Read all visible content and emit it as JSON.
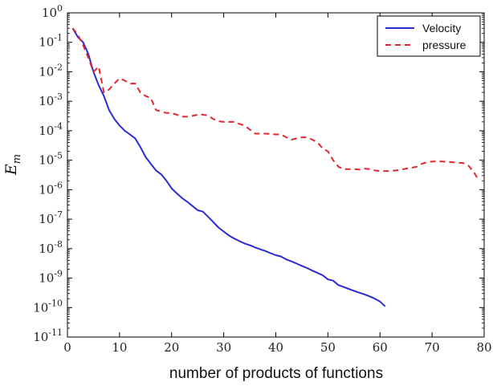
{
  "chart_data": {
    "type": "line",
    "title": "",
    "xlabel": "number of products of functions",
    "ylabel": "E_m",
    "ylabel_main": "E",
    "ylabel_sub": "m",
    "xlim": [
      0,
      80
    ],
    "ylim_exp": [
      -11,
      0
    ],
    "y_scale": "log",
    "grid": false,
    "legend_position": "top-right",
    "x_ticks": [
      0,
      10,
      20,
      30,
      40,
      50,
      60,
      70,
      80
    ],
    "x_tick_labels": [
      "0",
      "10",
      "20",
      "30",
      "40",
      "50",
      "60",
      "70",
      "80"
    ],
    "y_tick_exps": [
      0,
      -1,
      -2,
      -3,
      -4,
      -5,
      -6,
      -7,
      -8,
      -9,
      -10,
      -11
    ],
    "y_tick_base": "10",
    "y_tick_labels": [
      "0",
      "-1",
      "-2",
      "-3",
      "-4",
      "-5",
      "-6",
      "-7",
      "-8",
      "-9",
      "-10",
      "-11"
    ],
    "series": [
      {
        "name": "Velocity",
        "color": "#2b2bd6",
        "style": "solid",
        "x": [
          1,
          2,
          3,
          4,
          5,
          6,
          7,
          8,
          9,
          10,
          11,
          12,
          13,
          14,
          15,
          16,
          17,
          18,
          19,
          20,
          21,
          22,
          23,
          24,
          25,
          26,
          27,
          28,
          29,
          30,
          31,
          32,
          33,
          34,
          35,
          36,
          37,
          38,
          39,
          40,
          41,
          42,
          43,
          44,
          45,
          46,
          47,
          48,
          49,
          50,
          51,
          52,
          53,
          54,
          55,
          56,
          57,
          58,
          59,
          60,
          61
        ],
        "y": [
          0.3,
          0.15,
          0.1,
          0.04,
          0.01,
          0.0035,
          0.0015,
          0.0005,
          0.00025,
          0.00015,
          0.0001,
          7.5e-05,
          5.5e-05,
          2.8e-05,
          1.3e-05,
          7.5e-06,
          4.5e-06,
          3.3e-06,
          2e-06,
          1.1e-06,
          7.5e-07,
          5.2e-07,
          3.9e-07,
          2.8e-07,
          2e-07,
          1.8e-07,
          1.2e-07,
          8e-08,
          5.2e-08,
          3.8e-08,
          2.8e-08,
          2.2e-08,
          1.8e-08,
          1.5e-08,
          1.3e-08,
          1.1e-08,
          9.5e-09,
          8.3e-09,
          7e-09,
          6e-09,
          5.4e-09,
          4.3e-09,
          3.7e-09,
          3.1e-09,
          2.6e-09,
          2.2e-09,
          1.8e-09,
          1.5e-09,
          1.25e-09,
          9e-10,
          8.2e-10,
          5.8e-10,
          5e-10,
          4.3e-10,
          3.7e-10,
          3.2e-10,
          2.8e-10,
          2.4e-10,
          2e-10,
          1.6e-10,
          1.1e-10
        ]
      },
      {
        "name": "pressure",
        "color": "#e0282e",
        "style": "dashed",
        "x": [
          1,
          2,
          3,
          4,
          5,
          6,
          7,
          8,
          9,
          10,
          11,
          12,
          13,
          14,
          15,
          16,
          17,
          18,
          19,
          20,
          21,
          22,
          23,
          24,
          25,
          26,
          27,
          28,
          29,
          30,
          31,
          32,
          33,
          34,
          35,
          36,
          37,
          38,
          39,
          40,
          41,
          42,
          43,
          44,
          45,
          46,
          47,
          48,
          49,
          50,
          51,
          52,
          53,
          54,
          55,
          56,
          57,
          58,
          59,
          60,
          61,
          62,
          63,
          64,
          65,
          66,
          67,
          68,
          69,
          70,
          71,
          72,
          73,
          74,
          75,
          76,
          77,
          78,
          79
        ],
        "y": [
          0.3,
          0.18,
          0.08,
          0.03,
          0.01,
          0.015,
          0.002,
          0.0025,
          0.004,
          0.006,
          0.005,
          0.004,
          0.004,
          0.002,
          0.0015,
          0.0013,
          0.0005,
          0.00045,
          0.0004,
          0.0004,
          0.00035,
          0.0003,
          0.0003,
          0.00032,
          0.00035,
          0.00035,
          0.00033,
          0.00025,
          0.00021,
          0.0002,
          0.0002,
          0.0002,
          0.00017,
          0.00015,
          0.00011,
          8e-05,
          8e-05,
          8e-05,
          7.8e-05,
          7.5e-05,
          7.5e-05,
          6e-05,
          5e-05,
          5.5e-05,
          6e-05,
          6e-05,
          5e-05,
          4e-05,
          2.5e-05,
          2e-05,
          1e-05,
          6e-06,
          5e-06,
          5e-06,
          5e-06,
          4.8e-06,
          5.2e-06,
          5e-06,
          4.5e-06,
          4.3e-06,
          4.3e-06,
          4.3e-06,
          4.5e-06,
          4.7e-06,
          5.2e-06,
          5.5e-06,
          6e-06,
          7.5e-06,
          8.5e-06,
          9e-06,
          9.2e-06,
          9e-06,
          8.8e-06,
          8.5e-06,
          8.2e-06,
          8e-06,
          6.5e-06,
          4e-06,
          2e-06
        ]
      }
    ]
  }
}
